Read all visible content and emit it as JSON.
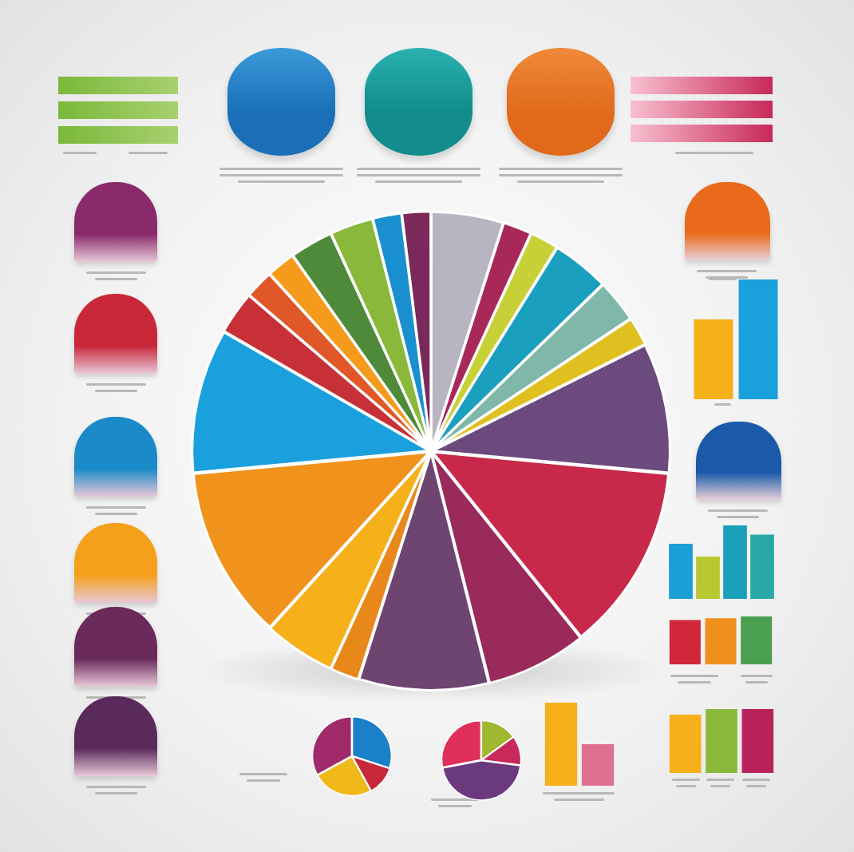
{
  "chart_data": [
    {
      "type": "pie",
      "values": [
        5,
        2,
        2,
        4,
        3,
        2,
        9,
        13,
        7,
        9,
        2,
        5,
        12,
        10,
        3,
        2,
        2,
        3,
        3,
        2,
        2
      ],
      "colors": [
        "#b9b4c2",
        "#a8285a",
        "#c8d038",
        "#1a9fbf",
        "#7fb8a8",
        "#e0c020",
        "#6b4a7e",
        "#c8294a",
        "#9a2a5c",
        "#6e4470",
        "#e8881a",
        "#f5b01a",
        "#f0921c",
        "#1aa0dc",
        "#c83038",
        "#e05828",
        "#f59a1a",
        "#4e8a3a",
        "#8ab83a",
        "#1a90d0",
        "#7a2a5a"
      ]
    },
    {
      "type": "bar",
      "categories": [
        null,
        null
      ],
      "values": [
        4,
        6
      ],
      "colors": [
        "#f5b01a",
        "#1aa0dc"
      ],
      "ylim": [
        0,
        6
      ],
      "tick_labels": false,
      "grid": false
    },
    {
      "type": "bar",
      "categories": [
        null,
        null,
        null,
        null
      ],
      "values": [
        3,
        2.3,
        4,
        3.5
      ],
      "colors": [
        "#1a9fd6",
        "#b8c830",
        "#1aa0b8",
        "#2aa8a8"
      ],
      "ylim": [
        0,
        4
      ],
      "tick_labels": false,
      "grid": false
    },
    {
      "type": "bar",
      "categories": [
        null,
        null,
        null
      ],
      "values": [
        2.5,
        2.6,
        2.7
      ],
      "colors": [
        "#d0283a",
        "#f0901c",
        "#4aa050"
      ],
      "ylim": [
        0,
        2.7
      ],
      "tick_labels": false,
      "grid": false
    },
    {
      "type": "bar",
      "categories": [
        null,
        null
      ],
      "values": [
        3.6,
        1.8
      ],
      "colors": [
        "#f5b01a",
        "#e07090"
      ],
      "ylim": [
        0,
        3.6
      ],
      "tick_labels": false,
      "grid": false
    },
    {
      "type": "bar",
      "categories": [
        null,
        null,
        null
      ],
      "values": [
        3.1,
        3.4,
        3.4
      ],
      "colors": [
        "#f5b01a",
        "#8ab83a",
        "#b8225a"
      ],
      "ylim": [
        0,
        3.4
      ],
      "tick_labels": false,
      "grid": false
    },
    {
      "type": "pie",
      "values": [
        30,
        12,
        25,
        33
      ],
      "colors": [
        "#1a80c8",
        "#c8283a",
        "#f0b81a",
        "#a02a6a"
      ]
    },
    {
      "type": "pie",
      "values": [
        15,
        12,
        45,
        28
      ],
      "colors": [
        "#a0b830",
        "#c8285a",
        "#6b3a7e",
        "#e0305a"
      ]
    }
  ]
}
